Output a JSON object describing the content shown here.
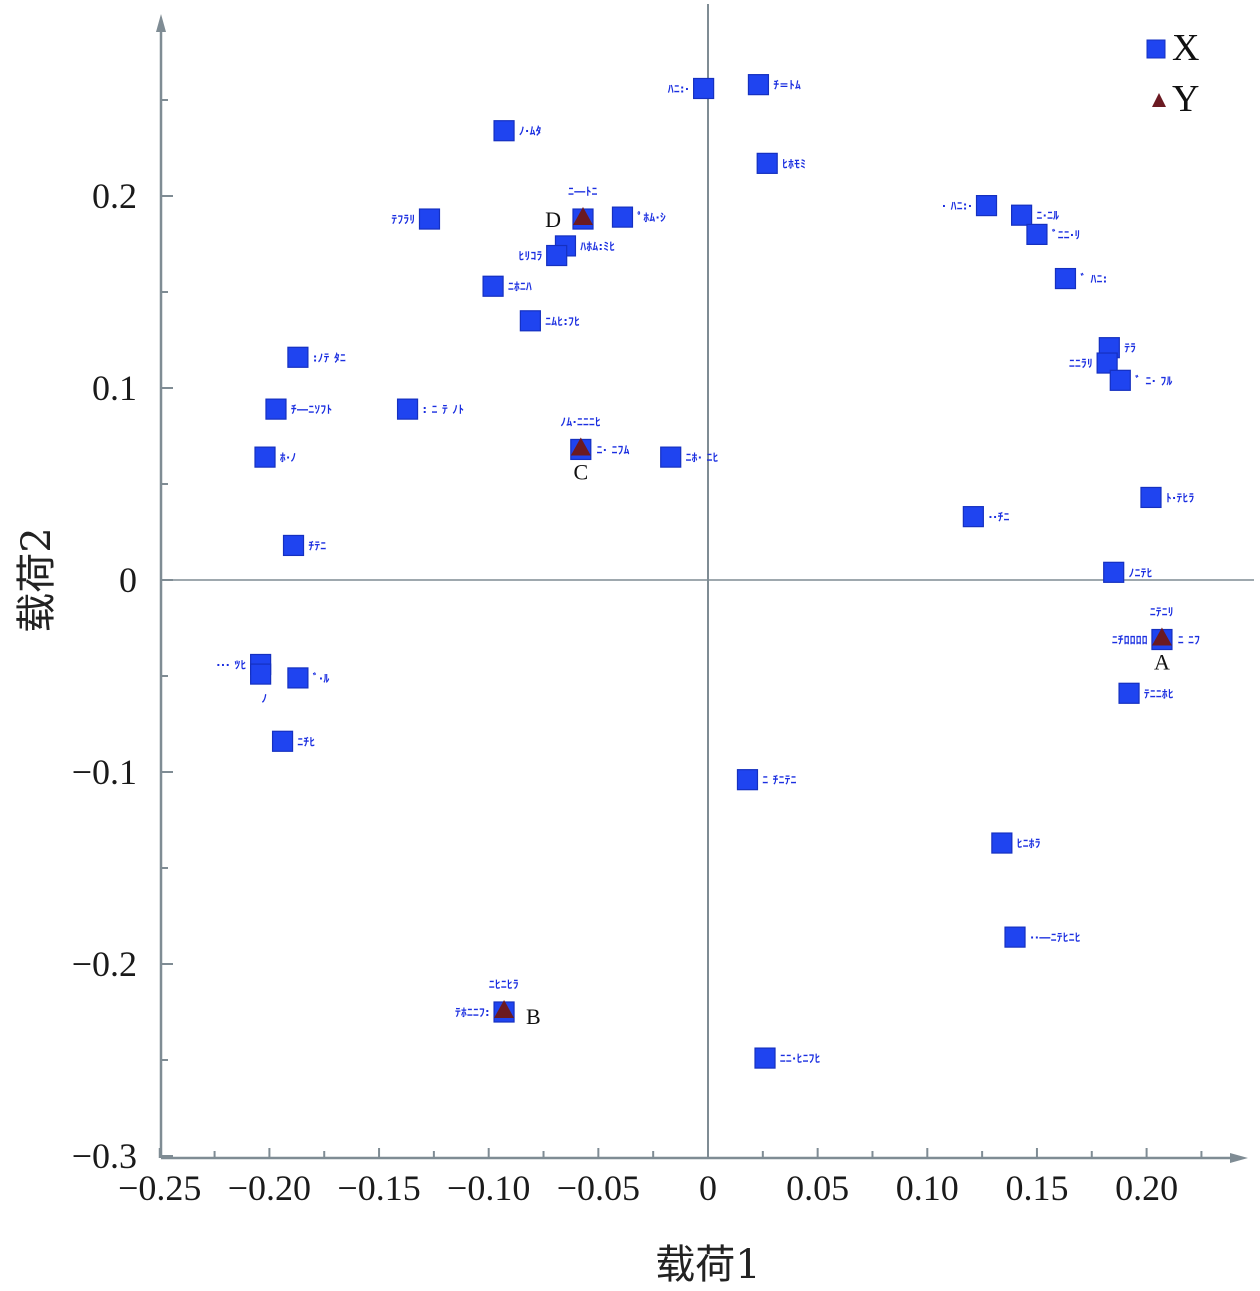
{
  "chart_data": {
    "type": "scatter",
    "title": "",
    "xlabel": "载荷1",
    "ylabel": "载荷2",
    "xlim": [
      -0.25,
      0.245
    ],
    "ylim": [
      -0.3,
      0.29
    ],
    "grid": false,
    "zero_lines": true,
    "x_ticks": [
      -0.25,
      -0.2,
      -0.15,
      -0.1,
      -0.05,
      0,
      0.05,
      0.1,
      0.15,
      0.2
    ],
    "x_tick_labels": [
      "−0.25",
      "−0.20",
      "−0.15",
      "−0.10",
      "−0.05",
      "0",
      "0.05",
      "0.10",
      "0.15",
      "0.20"
    ],
    "y_ticks": [
      -0.3,
      -0.2,
      -0.1,
      0,
      0.1,
      0.2
    ],
    "y_tick_labels": [
      "−0.3",
      "−0.2",
      "−0.1",
      "0",
      "0.1",
      "0.2"
    ],
    "legend": {
      "position": "top-right",
      "entries": [
        {
          "name": "X",
          "marker": "square",
          "color": "#1f44f0"
        },
        {
          "name": "Y",
          "marker": "triangle",
          "color": "#6b1a22"
        }
      ]
    },
    "series": [
      {
        "name": "X",
        "marker": "square",
        "color": "#1f44f0",
        "points": [
          {
            "x": -0.002,
            "y": 0.256,
            "label": "ﾊﾆ:·",
            "label_side": "left"
          },
          {
            "x": 0.023,
            "y": 0.258,
            "label": "ﾁ=ﾄﾑ",
            "label_side": "right"
          },
          {
            "x": -0.093,
            "y": 0.234,
            "label": "ﾉ·ﾑﾀ",
            "label_side": "right"
          },
          {
            "x": 0.027,
            "y": 0.217,
            "label": "ﾋﾎﾓﾐ",
            "label_side": "right"
          },
          {
            "x": -0.127,
            "y": 0.188,
            "label": "ﾃﾌﾗﾘ",
            "label_side": "left"
          },
          {
            "x": -0.039,
            "y": 0.189,
            "label": "ﾟﾎﾑ·ｼ",
            "label_side": "right"
          },
          {
            "x": -0.065,
            "y": 0.174,
            "label": "ﾊﾎﾑ:ﾐﾋ",
            "label_side": "right"
          },
          {
            "x": -0.069,
            "y": 0.169,
            "label": "ﾋﾘｺﾗ",
            "label_side": "left"
          },
          {
            "x": -0.098,
            "y": 0.153,
            "label": "ﾆﾎﾆﾊ",
            "label_side": "right"
          },
          {
            "x": -0.081,
            "y": 0.135,
            "label": "ﾆﾑﾋ:ﾌﾋ",
            "label_side": "right"
          },
          {
            "x": 0.127,
            "y": 0.195,
            "label": "· ﾊﾆ:·",
            "label_side": "left"
          },
          {
            "x": 0.143,
            "y": 0.19,
            "label": "ﾆ·ﾆﾙ",
            "label_side": "right"
          },
          {
            "x": 0.15,
            "y": 0.18,
            "label": "ﾞﾆﾆ·ﾘ",
            "label_side": "right"
          },
          {
            "x": 0.163,
            "y": 0.157,
            "label": "ﾞ ﾊﾆ:",
            "label_side": "right"
          },
          {
            "x": 0.183,
            "y": 0.121,
            "label": "ﾃﾗ",
            "label_side": "right"
          },
          {
            "x": 0.182,
            "y": 0.113,
            "label": "ﾆﾆﾗﾘ",
            "label_side": "left"
          },
          {
            "x": 0.188,
            "y": 0.104,
            "label": "ﾞ ﾆ· ﾌﾙ",
            "label_side": "right"
          },
          {
            "x": -0.187,
            "y": 0.116,
            "label": ":ﾉﾃ ﾀﾆ",
            "label_side": "right"
          },
          {
            "x": -0.197,
            "y": 0.089,
            "label": "ﾁ―ﾆｿﾌﾄ",
            "label_side": "right"
          },
          {
            "x": -0.137,
            "y": 0.089,
            "label": ": ﾆ ﾃ ﾉﾄ",
            "label_side": "right"
          },
          {
            "x": -0.202,
            "y": 0.064,
            "label": "ﾎ·ﾉ",
            "label_side": "right"
          },
          {
            "x": -0.017,
            "y": 0.064,
            "label": "ﾆﾎ· ﾆﾋ",
            "label_side": "right"
          },
          {
            "x": -0.189,
            "y": 0.018,
            "label": "ﾁﾃﾆ",
            "label_side": "right"
          },
          {
            "x": 0.121,
            "y": 0.033,
            "label": "··ﾁﾆ",
            "label_side": "right"
          },
          {
            "x": 0.202,
            "y": 0.043,
            "label": "ﾄ·ﾃﾋﾗ",
            "label_side": "right"
          },
          {
            "x": 0.185,
            "y": 0.004,
            "label": "ﾉﾆﾃﾋ",
            "label_side": "right"
          },
          {
            "x": -0.204,
            "y": -0.044,
            "label": "··· ﾂﾋ",
            "label_side": "left"
          },
          {
            "x": -0.204,
            "y": -0.049,
            "label": "ﾉ",
            "label_side": "below"
          },
          {
            "x": -0.187,
            "y": -0.051,
            "label": "ﾞ·ﾙ",
            "label_side": "right"
          },
          {
            "x": 0.192,
            "y": -0.059,
            "label": "ﾃﾆﾆﾎﾋ",
            "label_side": "right"
          },
          {
            "x": -0.194,
            "y": -0.084,
            "label": "ﾆﾁﾋ",
            "label_side": "right"
          },
          {
            "x": 0.018,
            "y": -0.104,
            "label": "ﾆ ﾁﾆﾃﾆ",
            "label_side": "right"
          },
          {
            "x": 0.134,
            "y": -0.137,
            "label": "ﾋﾆﾎﾗ",
            "label_side": "right"
          },
          {
            "x": 0.14,
            "y": -0.186,
            "label": "··―ﾆﾃﾋﾆﾋ",
            "label_side": "right"
          },
          {
            "x": 0.026,
            "y": -0.249,
            "label": "ﾆﾆ·ﾋﾆﾌﾋ",
            "label_side": "right"
          },
          {
            "x": 0.207,
            "y": -0.031,
            "label": "",
            "label_side": "none"
          },
          {
            "x": -0.093,
            "y": -0.225,
            "label": "",
            "label_side": "none"
          },
          {
            "x": -0.058,
            "y": 0.068,
            "label": "",
            "label_side": "none"
          },
          {
            "x": -0.057,
            "y": 0.188,
            "label": "",
            "label_side": "none"
          }
        ]
      },
      {
        "name": "Y",
        "marker": "triangle",
        "color": "#6b1a22",
        "points": [
          {
            "x": 0.207,
            "y": -0.031,
            "letter": "A",
            "top_label": "ﾆﾃﾆﾘ",
            "left_label": "ﾆﾁﾛﾛﾛﾛ",
            "right_label": "ﾆ ﾆﾌ"
          },
          {
            "x": -0.093,
            "y": -0.225,
            "letter": "B",
            "top_label": "ﾆﾋﾆﾋﾗ",
            "left_label": "ﾃﾎﾆﾆﾌ:",
            "right_label": ""
          },
          {
            "x": -0.058,
            "y": 0.068,
            "letter": "C",
            "top_label": "ﾉﾑ·ﾆﾆﾆﾋ",
            "left_label": "",
            "right_label": "ﾆ· ﾆﾌﾑ"
          },
          {
            "x": -0.057,
            "y": 0.188,
            "letter": "D",
            "top_label": "ﾆ―ﾄﾆ",
            "left_label": "",
            "right_label": ""
          }
        ]
      }
    ]
  }
}
